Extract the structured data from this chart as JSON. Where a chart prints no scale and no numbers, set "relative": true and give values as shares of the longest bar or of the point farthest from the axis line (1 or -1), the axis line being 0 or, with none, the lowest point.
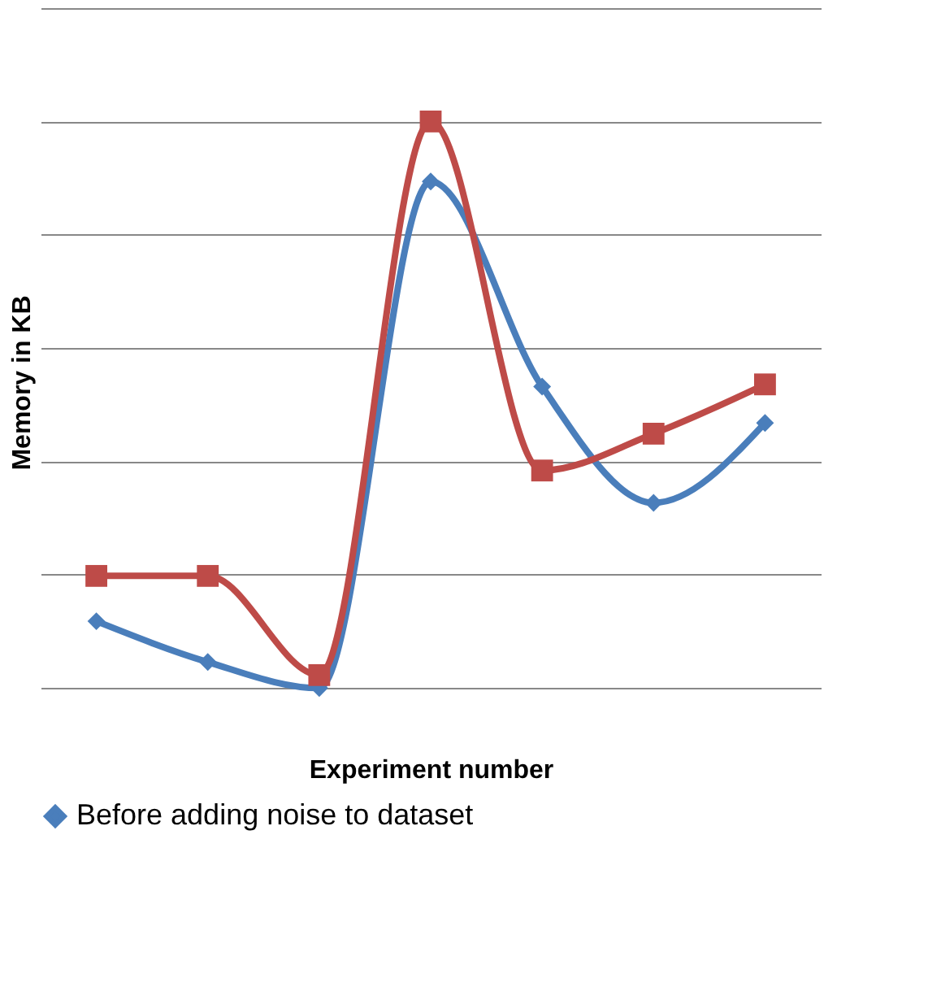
{
  "chart_data": {
    "type": "line",
    "relative": true,
    "xlabel": "Experiment number",
    "ylabel": "Memory in KB",
    "categories": [
      null,
      null,
      null,
      null,
      null,
      null,
      null
    ],
    "series": [
      {
        "name": "Before adding noise to dataset",
        "color": "#4a7ebb",
        "marker": "diamond",
        "values": [
          0.118,
          0.046,
          0,
          0.894,
          0.532,
          0.327,
          0.468
        ]
      },
      {
        "color": "#be4b48",
        "marker": "square",
        "values": [
          0.198,
          0.198,
          0.023,
          1,
          0.384,
          0.449,
          0.536
        ]
      }
    ],
    "grid": "y",
    "legend": "bottom",
    "line_style": "solid"
  }
}
